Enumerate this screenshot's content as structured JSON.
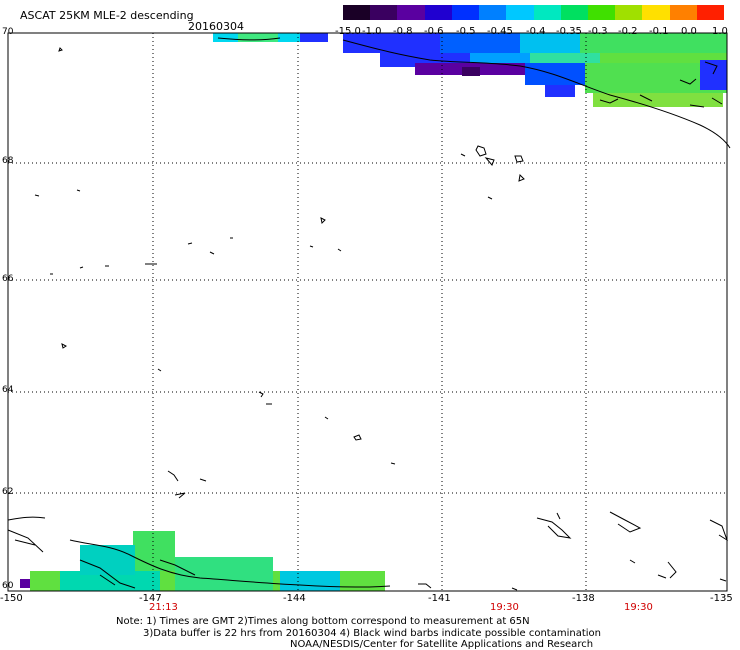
{
  "header": {
    "title": "ASCAT 25KM MLE-2 descending",
    "date": "20160304"
  },
  "colorbar": {
    "ticks": [
      "-15.0",
      "-1.0",
      "-0.8",
      "-0.6",
      "-0.5",
      "-0.45",
      "-0.4",
      "-0.35",
      "-0.3",
      "-0.2",
      "-0.1",
      "0.0",
      "1.0"
    ],
    "colors": [
      "#1a0026",
      "#3a0060",
      "#5a00a0",
      "#2000d0",
      "#0030ff",
      "#0080ff",
      "#00c8ff",
      "#00e8c0",
      "#00e060",
      "#40e000",
      "#a0e000",
      "#ffe000",
      "#ff8000",
      "#ff2000"
    ]
  },
  "axes": {
    "lat_labels": [
      "70",
      "68",
      "66",
      "64",
      "62",
      "60"
    ],
    "lon_labels": [
      "-150",
      "-147",
      "-144",
      "-141",
      "-138",
      "-135"
    ],
    "times": [
      "21:13",
      "19:30",
      "19:30"
    ]
  },
  "notes": {
    "line1": "Note: 1) Times are GMT 2)Times along bottom correspond to measurement at 65N",
    "line2": "3)Data buffer is 22 hrs from 20160304 4) Black wind barbs indicate possible contamination",
    "line3": "NOAA/NESDIS/Center for Satellite Applications and Research"
  }
}
